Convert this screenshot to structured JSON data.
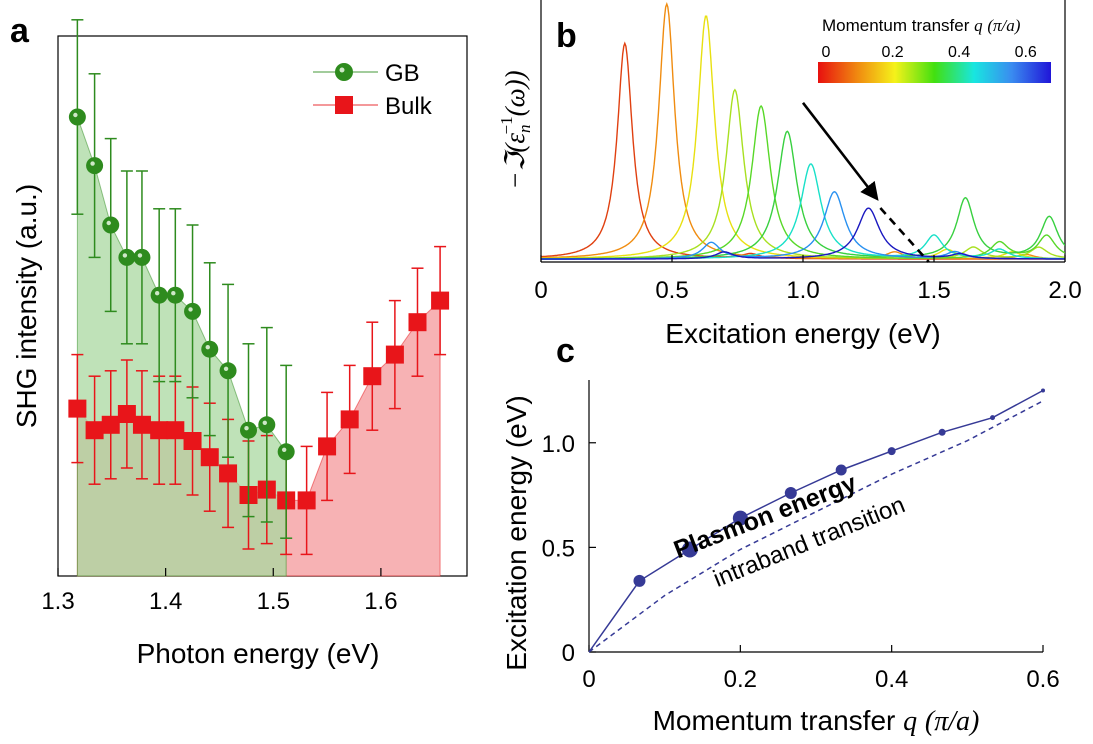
{
  "chart_data": [
    {
      "panel": "a",
      "type": "scatter",
      "xlabel": "Photon energy (eV)",
      "ylabel": "SHG intensity (a.u.)",
      "xlim": [
        1.3,
        1.68
      ],
      "x_ticks": [
        1.3,
        1.4,
        1.5,
        1.6
      ],
      "x_tick_labels": [
        "1.3",
        "1.4",
        "1.5",
        "1.6"
      ],
      "legend_position": "top-right",
      "series": [
        {
          "name": "GB",
          "color": "#2e8b1e",
          "fill": "#a9d8a0",
          "marker": "circle",
          "x": [
            1.318,
            1.334,
            1.349,
            1.364,
            1.378,
            1.394,
            1.409,
            1.425,
            1.441,
            1.458,
            1.477,
            1.494,
            1.512
          ],
          "y": [
            0.85,
            0.76,
            0.65,
            0.59,
            0.59,
            0.52,
            0.52,
            0.49,
            0.42,
            0.38,
            0.27,
            0.28,
            0.23
          ],
          "err": [
            0.18,
            0.17,
            0.16,
            0.16,
            0.16,
            0.16,
            0.16,
            0.16,
            0.16,
            0.16,
            0.16,
            0.18,
            0.16
          ]
        },
        {
          "name": "Bulk",
          "color": "#e8151a",
          "fill": "#f6a4a7",
          "marker": "square",
          "x": [
            1.318,
            1.334,
            1.349,
            1.364,
            1.378,
            1.394,
            1.409,
            1.425,
            1.441,
            1.458,
            1.477,
            1.494,
            1.512,
            1.531,
            1.55,
            1.571,
            1.592,
            1.613,
            1.634,
            1.655
          ],
          "y": [
            0.31,
            0.27,
            0.28,
            0.3,
            0.28,
            0.27,
            0.27,
            0.25,
            0.22,
            0.19,
            0.15,
            0.16,
            0.14,
            0.14,
            0.24,
            0.29,
            0.37,
            0.41,
            0.47,
            0.51
          ],
          "err": [
            0.1,
            0.1,
            0.1,
            0.1,
            0.1,
            0.1,
            0.1,
            0.1,
            0.1,
            0.1,
            0.1,
            0.1,
            0.1,
            0.1,
            0.1,
            0.1,
            0.1,
            0.1,
            0.1,
            0.1
          ]
        }
      ]
    },
    {
      "panel": "b",
      "type": "line",
      "xlabel": "Excitation energy (eV)",
      "ylabel": "−ℑ(ε",
      "ylabel_sub": "n",
      "ylabel_sup": "−1",
      "ylabel_tail": "(ω))",
      "xlim": [
        0,
        2.0
      ],
      "x_ticks": [
        0,
        0.5,
        1.0,
        1.5,
        2.0
      ],
      "x_tick_labels": [
        "0",
        "0.5",
        "1.0",
        "1.5",
        "2.0"
      ],
      "colorbar": {
        "title": "Momentum transfer",
        "title_var": "q",
        "title_unit": "(π/a)",
        "tick_labels": [
          "0",
          "0.2",
          "0.4",
          "0.6"
        ],
        "tick_values": [
          0,
          0.2,
          0.4,
          0.6
        ],
        "range": [
          0,
          0.7
        ],
        "colors": [
          "#e8100f",
          "#f08a10",
          "#f5f21a",
          "#42e010",
          "#18e6e0",
          "#3a8cf0",
          "#2015d8"
        ]
      },
      "series": [
        {
          "color": "#e04010",
          "peaks": [
            [
              0.32,
              0.93
            ]
          ],
          "sat": [
            [
              0.8,
              0.02
            ]
          ]
        },
        {
          "color": "#f08c10",
          "peaks": [
            [
              0.48,
              1.1
            ]
          ],
          "sat": [
            [
              1.35,
              0.03
            ],
            [
              1.85,
              0.02
            ]
          ]
        },
        {
          "color": "#e8e010",
          "peaks": [
            [
              0.63,
              1.05
            ]
          ],
          "sat": [
            [
              1.55,
              0.04
            ],
            [
              1.8,
              0.03
            ]
          ]
        },
        {
          "color": "#a8e020",
          "peaks": [
            [
              0.74,
              0.73
            ]
          ],
          "sat": [
            [
              1.65,
              0.05
            ],
            [
              1.9,
              0.05
            ]
          ]
        },
        {
          "color": "#58d828",
          "peaks": [
            [
              0.84,
              0.66
            ]
          ],
          "sat": [
            [
              1.75,
              0.07
            ],
            [
              1.93,
              0.1
            ]
          ]
        },
        {
          "color": "#38d040",
          "peaks": [
            [
              0.94,
              0.55
            ]
          ],
          "sat": [
            [
              1.62,
              0.26
            ],
            [
              1.94,
              0.18
            ]
          ]
        },
        {
          "color": "#18e0c8",
          "peaks": [
            [
              1.03,
              0.41
            ]
          ],
          "sat": [
            [
              1.5,
              0.1
            ],
            [
              1.75,
              0.04
            ]
          ]
        },
        {
          "color": "#2890f0",
          "peaks": [
            [
              1.12,
              0.29
            ]
          ],
          "sat": [
            [
              0.65,
              0.07
            ],
            [
              1.58,
              0.03
            ]
          ]
        },
        {
          "color": "#1a18c0",
          "peaks": [
            [
              1.25,
              0.22
            ]
          ],
          "sat": [
            [
              0.7,
              0.03
            ],
            [
              1.6,
              0.02
            ]
          ]
        }
      ],
      "annotation_arrow": {
        "from": [
          1.0,
          0.6
        ],
        "to": [
          1.28,
          0.25
        ],
        "dashed_to": [
          1.48,
          0.0
        ]
      }
    },
    {
      "panel": "c",
      "type": "line",
      "xlabel": "Momentum transfer",
      "xlabel_var": "q",
      "xlabel_unit": "(π/a)",
      "ylabel": "Excitation energy (eV)",
      "xlim": [
        0,
        0.6
      ],
      "ylim": [
        0,
        1.3
      ],
      "x_ticks": [
        0,
        0.2,
        0.4,
        0.6
      ],
      "x_tick_labels": [
        "0",
        "0.2",
        "0.4",
        "0.6"
      ],
      "y_ticks": [
        0,
        0.5,
        1.0
      ],
      "y_tick_labels": [
        "0",
        "0.5",
        "1.0"
      ],
      "series": [
        {
          "name": "Plasmon energy",
          "color": "#363a96",
          "style": "solid",
          "x": [
            0,
            0.0667,
            0.1333,
            0.2,
            0.2667,
            0.3333,
            0.4,
            0.4667,
            0.5333,
            0.6
          ],
          "y": [
            0,
            0.34,
            0.49,
            0.64,
            0.76,
            0.87,
            0.96,
            1.05,
            1.12,
            1.25
          ],
          "marker_sizes": [
            0,
            6,
            8,
            7.5,
            6,
            5.5,
            4,
            3.5,
            2.5,
            2
          ]
        },
        {
          "name": "intraband transition",
          "color": "#363a96",
          "style": "dashed",
          "x": [
            0,
            0.1,
            0.2,
            0.3,
            0.4,
            0.5,
            0.6
          ],
          "y": [
            0,
            0.27,
            0.49,
            0.67,
            0.85,
            1.01,
            1.2
          ]
        }
      ]
    }
  ],
  "panel_labels": {
    "a": "a",
    "b": "b",
    "c": "c"
  },
  "colors": {
    "gb": "#2e8b1e",
    "bulk": "#e8151a",
    "plasmon": "#363a96"
  }
}
